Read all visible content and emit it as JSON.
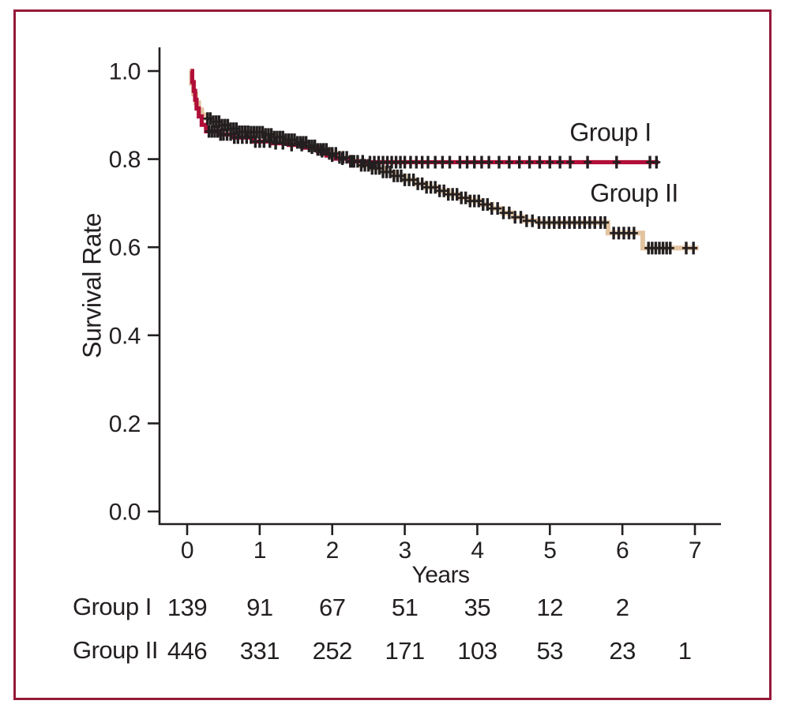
{
  "figure": {
    "border_color": "#96193a",
    "background": "#ffffff"
  },
  "chart_data": {
    "type": "line",
    "subtype": "kaplan-meier-step-survival",
    "title": "",
    "xlabel": "Years",
    "ylabel": "Survival Rate",
    "xlim": [
      0,
      7.3
    ],
    "ylim": [
      0,
      1.08
    ],
    "x_ticks": [
      "0",
      "1",
      "2",
      "3",
      "4",
      "5",
      "6",
      "7"
    ],
    "y_ticks": [
      "0.0",
      "0.2",
      "0.4",
      "0.6",
      "0.8",
      "1.0"
    ],
    "grid": false,
    "legend_position": "labels-right-of-curves",
    "axis_color": "#231f20",
    "censor_mark_color": "#231f20",
    "series": [
      {
        "name": "Group I",
        "color": "#b00e38",
        "line_width": 5.2,
        "end_t": 6.5,
        "steps": [
          [
            0.05,
            1.0
          ],
          [
            0.07,
            0.975
          ],
          [
            0.09,
            0.955
          ],
          [
            0.11,
            0.935
          ],
          [
            0.13,
            0.915
          ],
          [
            0.16,
            0.897
          ],
          [
            0.2,
            0.878
          ],
          [
            0.26,
            0.863
          ],
          [
            0.45,
            0.856
          ],
          [
            0.65,
            0.849
          ],
          [
            0.9,
            0.84
          ],
          [
            1.15,
            0.836
          ],
          [
            1.4,
            0.832
          ],
          [
            1.6,
            0.826
          ],
          [
            1.8,
            0.818
          ],
          [
            1.92,
            0.808
          ],
          [
            2.05,
            0.801
          ],
          [
            2.25,
            0.795
          ],
          [
            2.45,
            0.793
          ]
        ],
        "censor_times": [
          0.3,
          0.34,
          0.38,
          0.42,
          0.46,
          0.5,
          0.55,
          0.6,
          0.65,
          0.7,
          0.76,
          0.82,
          0.88,
          0.94,
          1.0,
          1.06,
          1.14,
          1.22,
          1.32,
          1.44,
          1.58,
          1.72,
          1.86,
          2.0,
          2.14,
          2.28,
          2.42,
          2.52,
          2.58,
          2.64,
          2.7,
          2.76,
          2.82,
          2.88,
          2.94,
          3.0,
          3.08,
          3.16,
          3.24,
          3.32,
          3.42,
          3.52,
          3.62,
          3.76,
          3.86,
          3.96,
          4.06,
          4.16,
          4.3,
          4.44,
          4.58,
          4.72,
          4.86,
          5.0,
          5.14,
          5.28,
          5.52,
          5.92,
          6.38,
          6.47
        ]
      },
      {
        "name": "Group II",
        "color": "#e3c4a1",
        "line_width": 6,
        "end_t": 7.05,
        "steps": [
          [
            0.03,
            1.0
          ],
          [
            0.06,
            0.972
          ],
          [
            0.09,
            0.948
          ],
          [
            0.12,
            0.928
          ],
          [
            0.16,
            0.912
          ],
          [
            0.2,
            0.9
          ],
          [
            0.27,
            0.892
          ],
          [
            0.35,
            0.885
          ],
          [
            0.45,
            0.877
          ],
          [
            0.58,
            0.869
          ],
          [
            0.72,
            0.862
          ],
          [
            0.88,
            0.861
          ],
          [
            1.05,
            0.856
          ],
          [
            1.2,
            0.85
          ],
          [
            1.35,
            0.844
          ],
          [
            1.5,
            0.838
          ],
          [
            1.65,
            0.83
          ],
          [
            1.8,
            0.822
          ],
          [
            1.95,
            0.813
          ],
          [
            2.1,
            0.804
          ],
          [
            2.25,
            0.795
          ],
          [
            2.4,
            0.786
          ],
          [
            2.55,
            0.779
          ],
          [
            2.7,
            0.771
          ],
          [
            2.85,
            0.762
          ],
          [
            3.0,
            0.753
          ],
          [
            3.15,
            0.744
          ],
          [
            3.3,
            0.736
          ],
          [
            3.45,
            0.728
          ],
          [
            3.6,
            0.72
          ],
          [
            3.75,
            0.712
          ],
          [
            3.9,
            0.705
          ],
          [
            4.05,
            0.697
          ],
          [
            4.2,
            0.688
          ],
          [
            4.35,
            0.678
          ],
          [
            4.5,
            0.668
          ],
          [
            4.65,
            0.66
          ],
          [
            4.85,
            0.656
          ],
          [
            5.8,
            0.632
          ],
          [
            6.28,
            0.598
          ]
        ],
        "censor_times": [
          0.28,
          0.32,
          0.36,
          0.4,
          0.44,
          0.48,
          0.52,
          0.56,
          0.6,
          0.64,
          0.68,
          0.72,
          0.76,
          0.8,
          0.84,
          0.88,
          0.92,
          0.96,
          1.0,
          1.04,
          1.08,
          1.12,
          1.16,
          1.2,
          1.24,
          1.28,
          1.32,
          1.36,
          1.4,
          1.44,
          1.48,
          1.52,
          1.56,
          1.6,
          1.64,
          1.68,
          1.72,
          1.76,
          1.8,
          1.84,
          1.88,
          1.92,
          1.96,
          2.0,
          2.05,
          2.1,
          2.15,
          2.2,
          2.25,
          2.3,
          2.35,
          2.4,
          2.45,
          2.5,
          2.55,
          2.6,
          2.65,
          2.7,
          2.75,
          2.8,
          2.85,
          2.9,
          2.95,
          3.0,
          3.06,
          3.12,
          3.18,
          3.24,
          3.3,
          3.36,
          3.42,
          3.48,
          3.54,
          3.6,
          3.66,
          3.72,
          3.78,
          3.84,
          3.9,
          3.96,
          4.02,
          4.08,
          4.14,
          4.2,
          4.28,
          4.36,
          4.44,
          4.52,
          4.6,
          4.68,
          4.76,
          4.85,
          4.92,
          4.99,
          5.06,
          5.13,
          5.2,
          5.27,
          5.34,
          5.41,
          5.48,
          5.55,
          5.62,
          5.7,
          5.76,
          5.88,
          5.95,
          6.02,
          6.09,
          6.16,
          6.36,
          6.41,
          6.46,
          6.51,
          6.56,
          6.61,
          6.66,
          6.88,
          6.98
        ]
      }
    ],
    "at_risk_table": {
      "rows": [
        {
          "label": "Group I",
          "counts": [
            {
              "t": 0,
              "n": "139"
            },
            {
              "t": 1,
              "n": "91"
            },
            {
              "t": 2,
              "n": "67"
            },
            {
              "t": 3,
              "n": "51"
            },
            {
              "t": 4,
              "n": "35"
            },
            {
              "t": 5,
              "n": "12"
            },
            {
              "t": 6,
              "n": "2"
            }
          ]
        },
        {
          "label": "Group II",
          "counts": [
            {
              "t": 0,
              "n": "446"
            },
            {
              "t": 1,
              "n": "331"
            },
            {
              "t": 2,
              "n": "252"
            },
            {
              "t": 3,
              "n": "171"
            },
            {
              "t": 4,
              "n": "103"
            },
            {
              "t": 5,
              "n": "53"
            },
            {
              "t": 6,
              "n": "23"
            },
            {
              "t": 6.86,
              "n": "1"
            }
          ]
        }
      ]
    }
  }
}
